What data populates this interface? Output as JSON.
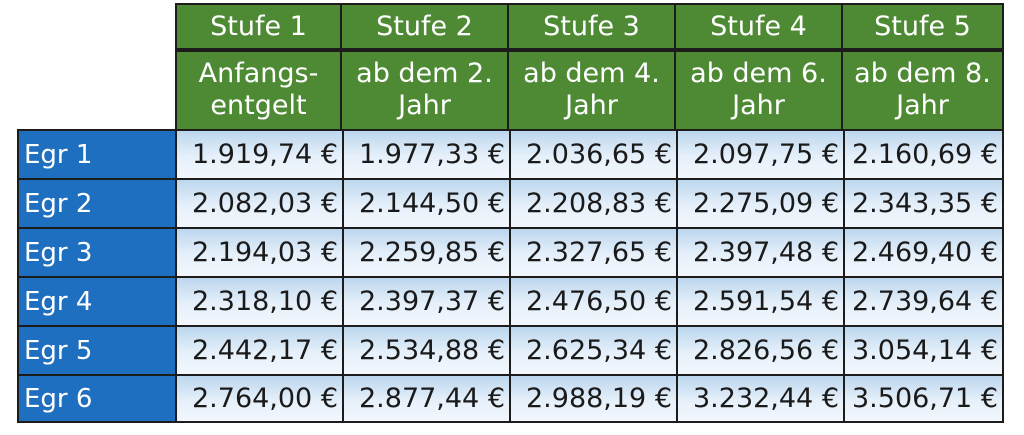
{
  "table": {
    "columns": [
      {
        "stufe": "Stufe 1",
        "line1": "Anfangs-",
        "line2": "entgelt"
      },
      {
        "stufe": "Stufe 2",
        "line1": "ab dem 2.",
        "line2": "Jahr"
      },
      {
        "stufe": "Stufe 3",
        "line1": "ab dem 4.",
        "line2": "Jahr"
      },
      {
        "stufe": "Stufe 4",
        "line1": "ab dem 6.",
        "line2": "Jahr"
      },
      {
        "stufe": "Stufe 5",
        "line1": "ab dem 8.",
        "line2": "Jahr"
      }
    ],
    "rows": [
      {
        "label": "Egr 1",
        "values": [
          "1.919,74 €",
          "1.977,33 €",
          "2.036,65 €",
          "2.097,75 €",
          "2.160,69 €"
        ]
      },
      {
        "label": "Egr 2",
        "values": [
          "2.082,03 €",
          "2.144,50 €",
          "2.208,83 €",
          "2.275,09 €",
          "2.343,35 €"
        ]
      },
      {
        "label": "Egr 3",
        "values": [
          "2.194,03 €",
          "2.259,85 €",
          "2.327,65 €",
          "2.397,48 €",
          "2.469,40 €"
        ]
      },
      {
        "label": "Egr 4",
        "values": [
          "2.318,10 €",
          "2.397,37 €",
          "2.476,50 €",
          "2.591,54 €",
          "2.739,64 €"
        ]
      },
      {
        "label": "Egr 5",
        "values": [
          "2.442,17 €",
          "2.534,88 €",
          "2.625,34 €",
          "2.826,56 €",
          "3.054,14 €"
        ]
      },
      {
        "label": "Egr 6",
        "values": [
          "2.764,00 €",
          "2.877,44 €",
          "2.988,19 €",
          "3.232,44 €",
          "3.506,71 €"
        ]
      }
    ]
  },
  "colors": {
    "header_green": "#4d8a33",
    "row_header_blue": "#1f6fc0",
    "cell_light_blue": "#e6f0fa"
  }
}
